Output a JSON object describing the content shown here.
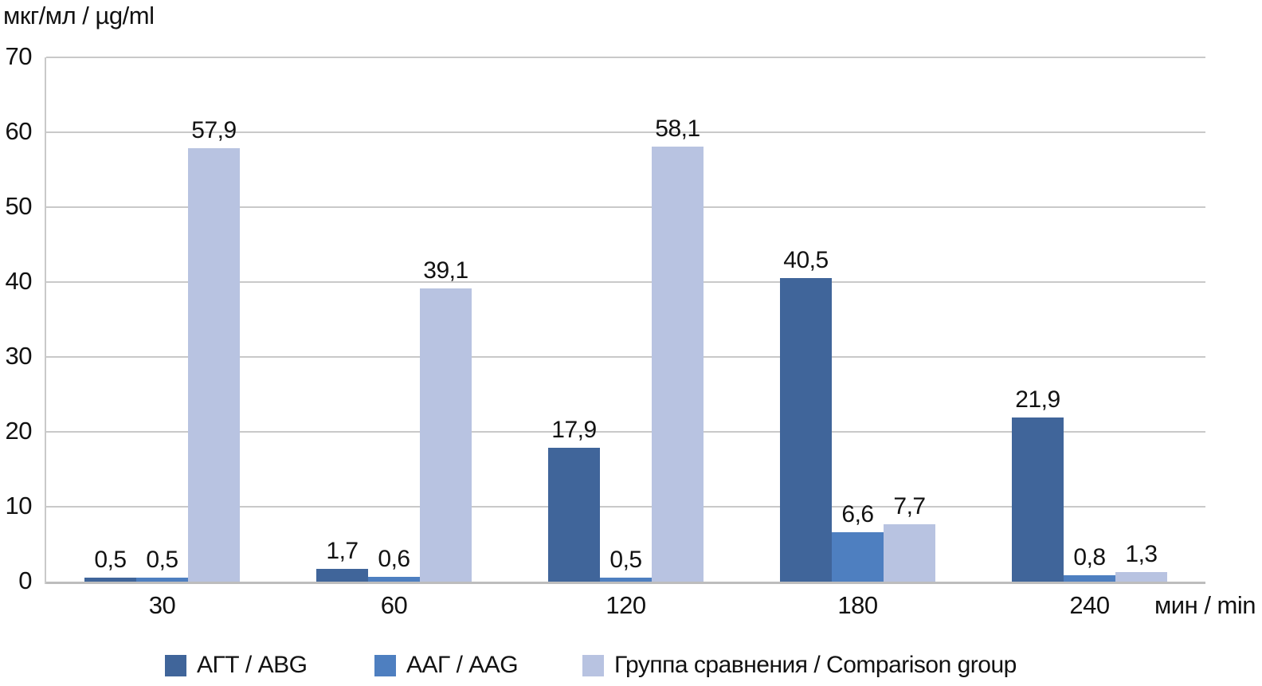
{
  "chart_data": {
    "type": "bar",
    "y_axis_title": "мкг/мл / µg/ml",
    "x_axis_title": "мин / min",
    "categories": [
      "30",
      "60",
      "120",
      "180",
      "240"
    ],
    "series": [
      {
        "name": "АГТ / ABG",
        "color": "#40659a",
        "values": [
          0.5,
          1.7,
          17.9,
          40.5,
          21.9
        ],
        "labels": [
          "0,5",
          "1,7",
          "17,9",
          "40,5",
          "21,9"
        ]
      },
      {
        "name": "ААГ / AAG",
        "color": "#4e7fc0",
        "values": [
          0.5,
          0.6,
          0.5,
          6.6,
          0.8
        ],
        "labels": [
          "0,5",
          "0,6",
          "0,5",
          "6,6",
          "0,8"
        ]
      },
      {
        "name": "Группа сравнения / Comparison group",
        "color": "#b8c3e1",
        "values": [
          57.9,
          39.1,
          58.1,
          7.7,
          1.3
        ],
        "labels": [
          "57,9",
          "39,1",
          "58,1",
          "7,7",
          "1,3"
        ]
      }
    ],
    "y_ticks": [
      0,
      10,
      20,
      30,
      40,
      50,
      60,
      70
    ],
    "ylim": [
      0,
      70
    ],
    "grid": true,
    "legend_position": "bottom",
    "colors": {
      "gridline": "#c9c9c9",
      "axisline": "#bdbdbd",
      "text": "#121212"
    }
  }
}
